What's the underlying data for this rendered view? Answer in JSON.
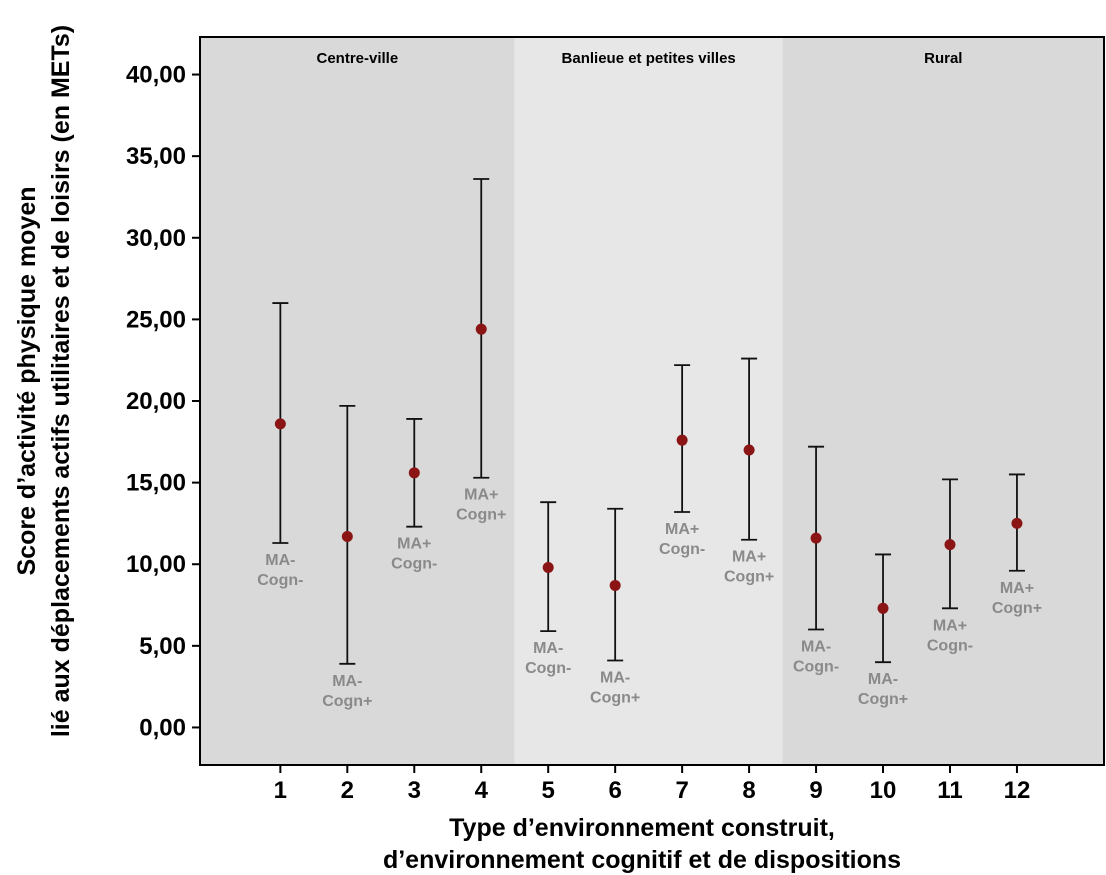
{
  "chart_data": {
    "type": "scatter",
    "title": "",
    "xlabel_lines": [
      "Type d’environnement construit,",
      "d’environnement cognitif et de dispositions"
    ],
    "ylabel_lines": [
      "Score d’activité physique moyen",
      "lié aux déplacements actifs utilitaires et de loisirs (en METs)"
    ],
    "ylim": [
      -2.3,
      42.3
    ],
    "xlim": [
      -0.2,
      13.3
    ],
    "yticks": [
      0,
      5,
      10,
      15,
      20,
      25,
      30,
      35,
      40
    ],
    "ytick_labels": [
      "0,00",
      "5,00",
      "10,00",
      "15,00",
      "20,00",
      "25,00",
      "30,00",
      "35,00",
      "40,00"
    ],
    "xticks": [
      1,
      2,
      3,
      4,
      5,
      6,
      7,
      8,
      9,
      10,
      11,
      12
    ],
    "xtick_labels": [
      "1",
      "2",
      "3",
      "4",
      "5",
      "6",
      "7",
      "8",
      "9",
      "10",
      "11",
      "12"
    ],
    "grid": false,
    "point_color": "#8b1414",
    "regions": [
      {
        "label": "Centre-ville",
        "x_from": -0.2,
        "x_to": 4.5,
        "color": "#d9d9d9"
      },
      {
        "label": "Banlieue et petites villes",
        "x_from": 4.5,
        "x_to": 8.5,
        "color": "#e7e7e7"
      },
      {
        "label": "Rural",
        "x_from": 8.5,
        "x_to": 13.3,
        "color": "#d9d9d9"
      }
    ],
    "points": [
      {
        "x": 1,
        "y": 18.6,
        "low": 11.3,
        "high": 26.0,
        "label": [
          "MA-",
          "Cogn-"
        ],
        "label_pos": "below"
      },
      {
        "x": 2,
        "y": 11.7,
        "low": 3.9,
        "high": 19.7,
        "label": [
          "MA-",
          "Cogn+"
        ],
        "label_pos": "below"
      },
      {
        "x": 3,
        "y": 15.6,
        "low": 12.3,
        "high": 18.9,
        "label": [
          "MA+",
          "Cogn-"
        ],
        "label_pos": "below"
      },
      {
        "x": 4,
        "y": 24.4,
        "low": 15.3,
        "high": 33.6,
        "label": [
          "MA+",
          "Cogn+"
        ],
        "label_pos": "below"
      },
      {
        "x": 5,
        "y": 9.8,
        "low": 5.9,
        "high": 13.8,
        "label": [
          "MA-",
          "Cogn-"
        ],
        "label_pos": "below"
      },
      {
        "x": 6,
        "y": 8.7,
        "low": 4.1,
        "high": 13.4,
        "label": [
          "MA-",
          "Cogn+"
        ],
        "label_pos": "below"
      },
      {
        "x": 7,
        "y": 17.6,
        "low": 13.2,
        "high": 22.2,
        "label": [
          "MA+",
          "Cogn-"
        ],
        "label_pos": "below"
      },
      {
        "x": 8,
        "y": 17.0,
        "low": 11.5,
        "high": 22.6,
        "label": [
          "MA+",
          "Cogn+"
        ],
        "label_pos": "below"
      },
      {
        "x": 9,
        "y": 11.6,
        "low": 6.0,
        "high": 17.2,
        "label": [
          "MA-",
          "Cogn-"
        ],
        "label_pos": "below"
      },
      {
        "x": 10,
        "y": 7.3,
        "low": 4.0,
        "high": 10.6,
        "label": [
          "MA-",
          "Cogn+"
        ],
        "label_pos": "below"
      },
      {
        "x": 11,
        "y": 11.2,
        "low": 7.3,
        "high": 15.2,
        "label": [
          "MA+",
          "Cogn-"
        ],
        "label_pos": "below"
      },
      {
        "x": 12,
        "y": 12.5,
        "low": 9.6,
        "high": 15.5,
        "label": [
          "MA+",
          "Cogn+"
        ],
        "label_pos": "below"
      }
    ]
  }
}
